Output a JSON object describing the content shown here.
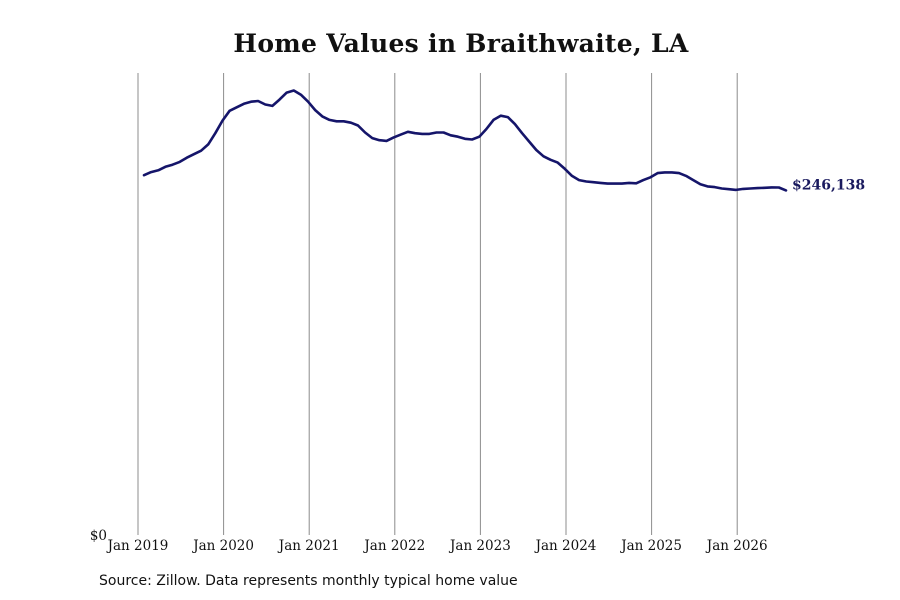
{
  "chart_data": {
    "type": "line",
    "title": "Home Values in Braithwaite, LA",
    "xlabel": "",
    "ylabel": "",
    "x_tick_labels": [
      "Jan 2019",
      "Jan 2020",
      "Jan 2021",
      "Jan 2022",
      "Jan 2023",
      "Jan 2024",
      "Jan 2025",
      "Jan 2026"
    ],
    "y_tick_labels": [
      "$0"
    ],
    "ylim": [
      0,
      330000
    ],
    "grid": "vertical",
    "legend": "none",
    "end_label": "$246,138",
    "series": [
      {
        "color": "#15156a",
        "x": [
          "2019-01",
          "2019-02",
          "2019-03",
          "2019-04",
          "2019-05",
          "2019-06",
          "2019-07",
          "2019-08",
          "2019-09",
          "2019-10",
          "2019-11",
          "2019-12",
          "2020-01",
          "2020-02",
          "2020-03",
          "2020-04",
          "2020-05",
          "2020-06",
          "2020-07",
          "2020-08",
          "2020-09",
          "2020-10",
          "2020-11",
          "2020-12",
          "2021-01",
          "2021-02",
          "2021-03",
          "2021-04",
          "2021-05",
          "2021-06",
          "2021-07",
          "2021-08",
          "2021-09",
          "2021-10",
          "2021-11",
          "2021-12",
          "2022-01",
          "2022-02",
          "2022-03",
          "2022-04",
          "2022-05",
          "2022-06",
          "2022-07",
          "2022-08",
          "2022-09",
          "2022-10",
          "2022-11",
          "2022-12",
          "2023-01",
          "2023-02",
          "2023-03",
          "2023-04",
          "2023-05",
          "2023-06",
          "2023-07",
          "2023-08",
          "2023-09",
          "2023-10",
          "2023-11",
          "2023-12",
          "2024-01",
          "2024-02",
          "2024-03",
          "2024-04",
          "2024-05",
          "2024-06",
          "2024-07",
          "2024-08",
          "2024-09",
          "2024-10",
          "2024-11",
          "2024-12",
          "2025-01",
          "2025-02",
          "2025-03",
          "2025-04",
          "2025-05",
          "2025-06",
          "2025-07",
          "2025-08",
          "2025-09",
          "2025-10",
          "2025-11",
          "2025-12",
          "2026-01",
          "2026-02",
          "2026-03",
          "2026-04",
          "2026-05",
          "2026-06",
          "2026-07"
        ],
        "values": [
          257000,
          259200,
          260500,
          263000,
          264500,
          266500,
          269500,
          272000,
          274500,
          279000,
          287000,
          296000,
          303000,
          305500,
          308000,
          309500,
          310000,
          307500,
          306500,
          311000,
          316000,
          317500,
          314500,
          309500,
          303500,
          299000,
          296500,
          295500,
          295500,
          294500,
          292500,
          287500,
          283500,
          282000,
          281500,
          284000,
          286000,
          288000,
          287000,
          286500,
          286500,
          287500,
          287500,
          285500,
          284500,
          283000,
          282500,
          284500,
          290000,
          296500,
          299500,
          298500,
          293500,
          287000,
          281000,
          275000,
          270500,
          268000,
          266000,
          261500,
          256500,
          253500,
          252500,
          252000,
          251500,
          251000,
          251000,
          251000,
          251500,
          251200,
          253500,
          255500,
          258500,
          259000,
          259000,
          258500,
          256500,
          253500,
          250500,
          249000,
          248500,
          247500,
          247000,
          246500,
          247200,
          247500,
          247800,
          248000,
          248300,
          248200,
          246138
        ]
      }
    ]
  },
  "source_note": "Source: Zillow. Data represents monthly typical home value"
}
